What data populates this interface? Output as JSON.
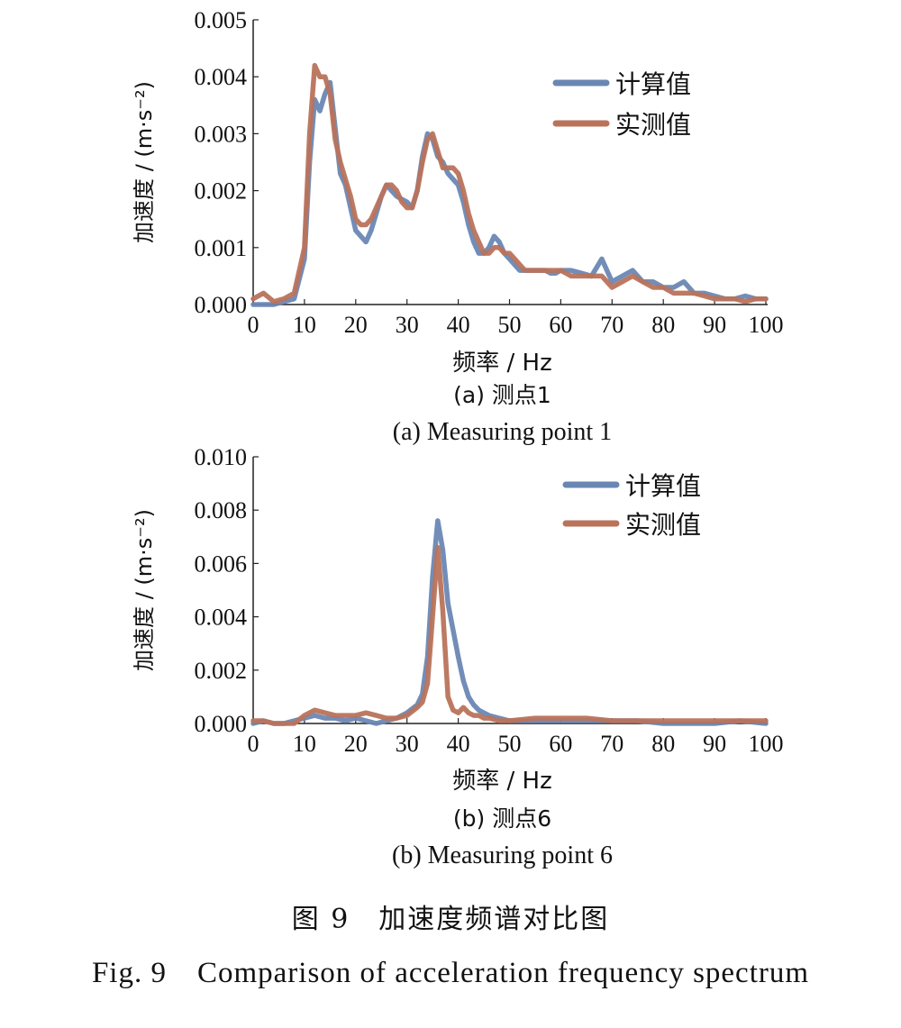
{
  "figure": {
    "title_cn": "图 9　加速度频谱对比图",
    "title_en": "Fig. 9　Comparison of acceleration frequency spectrum"
  },
  "chart_data": [
    {
      "type": "line",
      "caption_cn": "(a) 测点1",
      "caption_en": "(a) Measuring point 1",
      "xlabel": "频率 / Hz",
      "ylabel": "加速度 / (m·s⁻²)",
      "xlim": [
        0,
        100
      ],
      "ylim": [
        0,
        0.005
      ],
      "xticks": [
        "0",
        "10",
        "20",
        "30",
        "40",
        "50",
        "60",
        "70",
        "80",
        "90",
        "100"
      ],
      "yticks": [
        "0.000",
        "0.001",
        "0.002",
        "0.003",
        "0.004",
        "0.005"
      ],
      "legend_position": "top-right",
      "series": [
        {
          "name": "计算值",
          "color": "#6a87b4",
          "x": [
            0,
            2,
            4,
            6,
            8,
            10,
            11,
            12,
            13,
            14,
            15,
            16,
            17,
            18,
            19,
            20,
            21,
            22,
            23,
            24,
            25,
            26,
            27,
            28,
            29,
            30,
            31,
            32,
            33,
            34,
            35,
            36,
            37,
            38,
            39,
            40,
            41,
            42,
            43,
            44,
            45,
            46,
            47,
            48,
            49,
            50,
            51,
            52,
            53,
            54,
            55,
            56,
            57,
            58,
            59,
            60,
            62,
            64,
            66,
            68,
            70,
            72,
            74,
            76,
            78,
            80,
            82,
            84,
            86,
            88,
            90,
            92,
            94,
            96,
            98,
            100
          ],
          "y": [
            0.0,
            0.0,
            0.0,
            5e-05,
            0.0001,
            0.0008,
            0.0025,
            0.0036,
            0.0034,
            0.0037,
            0.0039,
            0.0031,
            0.0023,
            0.0021,
            0.0017,
            0.0013,
            0.0012,
            0.0011,
            0.0013,
            0.0016,
            0.0019,
            0.0021,
            0.002,
            0.0019,
            0.00185,
            0.0018,
            0.0017,
            0.002,
            0.0026,
            0.003,
            0.0029,
            0.0026,
            0.0025,
            0.0023,
            0.0022,
            0.0021,
            0.0018,
            0.0014,
            0.0011,
            0.0009,
            0.0009,
            0.001,
            0.0012,
            0.0011,
            0.0009,
            0.0008,
            0.0007,
            0.0006,
            0.0006,
            0.0006,
            0.0006,
            0.0006,
            0.0006,
            0.00055,
            0.00055,
            0.0006,
            0.0006,
            0.00055,
            0.0005,
            0.0008,
            0.0004,
            0.0005,
            0.0006,
            0.0004,
            0.0004,
            0.0003,
            0.0003,
            0.0004,
            0.0002,
            0.0002,
            0.00015,
            0.0001,
            0.0001,
            0.00015,
            0.0001,
            0.0001
          ]
        },
        {
          "name": "实测值",
          "color": "#b9735b",
          "x": [
            0,
            2,
            4,
            6,
            8,
            10,
            11,
            12,
            13,
            14,
            15,
            16,
            17,
            18,
            19,
            20,
            21,
            22,
            23,
            24,
            25,
            26,
            27,
            28,
            29,
            30,
            31,
            32,
            33,
            34,
            35,
            36,
            37,
            38,
            39,
            40,
            41,
            42,
            43,
            44,
            45,
            46,
            47,
            48,
            49,
            50,
            51,
            52,
            53,
            54,
            55,
            56,
            57,
            58,
            59,
            60,
            62,
            64,
            66,
            68,
            70,
            72,
            74,
            76,
            78,
            80,
            82,
            84,
            86,
            88,
            90,
            92,
            94,
            96,
            98,
            100
          ],
          "y": [
            0.0001,
            0.0002,
            5e-05,
            0.0001,
            0.0002,
            0.001,
            0.003,
            0.0042,
            0.004,
            0.004,
            0.0037,
            0.0029,
            0.0025,
            0.0022,
            0.0019,
            0.0015,
            0.0014,
            0.0014,
            0.0015,
            0.0017,
            0.0019,
            0.0021,
            0.0021,
            0.002,
            0.0018,
            0.0017,
            0.0017,
            0.002,
            0.0025,
            0.0029,
            0.003,
            0.0027,
            0.0024,
            0.0024,
            0.0024,
            0.0023,
            0.002,
            0.0016,
            0.0013,
            0.0011,
            0.0009,
            0.0009,
            0.001,
            0.001,
            0.0009,
            0.0009,
            0.0008,
            0.0007,
            0.0006,
            0.0006,
            0.0006,
            0.0006,
            0.0006,
            0.0006,
            0.0006,
            0.0006,
            0.0005,
            0.0005,
            0.0005,
            0.0005,
            0.0003,
            0.0004,
            0.0005,
            0.0004,
            0.0003,
            0.0003,
            0.0002,
            0.0002,
            0.0002,
            0.00015,
            0.0001,
            0.0001,
            0.0001,
            5e-05,
            0.0001,
            0.0001
          ]
        }
      ]
    },
    {
      "type": "line",
      "caption_cn": "(b) 测点6",
      "caption_en": "(b) Measuring point 6",
      "xlabel": "频率 / Hz",
      "ylabel": "加速度 / (m·s⁻²)",
      "xlim": [
        0,
        100
      ],
      "ylim": [
        0,
        0.01
      ],
      "xticks": [
        "0",
        "10",
        "20",
        "30",
        "40",
        "50",
        "60",
        "70",
        "80",
        "90",
        "100"
      ],
      "yticks": [
        "0.000",
        "0.002",
        "0.004",
        "0.006",
        "0.008",
        "0.010"
      ],
      "legend_position": "top-right",
      "series": [
        {
          "name": "计算值",
          "color": "#6a87b4",
          "x": [
            0,
            2,
            4,
            6,
            8,
            10,
            12,
            14,
            16,
            18,
            20,
            22,
            24,
            26,
            28,
            30,
            32,
            33,
            34,
            35,
            36,
            37,
            38,
            39,
            40,
            41,
            42,
            43,
            44,
            45,
            46,
            48,
            50,
            55,
            60,
            65,
            70,
            75,
            80,
            85,
            90,
            95,
            100
          ],
          "y": [
            0.0,
            0.0001,
            0.0,
            0.0,
            0.0001,
            0.0002,
            0.0003,
            0.0002,
            0.0002,
            0.0001,
            0.0002,
            0.0001,
            0.0,
            0.0001,
            0.0002,
            0.0004,
            0.0007,
            0.0011,
            0.0025,
            0.0055,
            0.0076,
            0.0065,
            0.0045,
            0.0035,
            0.0025,
            0.0016,
            0.001,
            0.0007,
            0.0005,
            0.0004,
            0.0003,
            0.0002,
            0.0001,
            0.0001,
            0.0001,
            0.0001,
            0.0001,
            0.0001,
            0.0,
            0.0,
            0.0,
            0.0001,
            0.0
          ]
        },
        {
          "name": "实测值",
          "color": "#b9735b",
          "x": [
            0,
            2,
            4,
            6,
            8,
            10,
            12,
            14,
            16,
            18,
            20,
            22,
            24,
            26,
            28,
            30,
            32,
            33,
            34,
            35,
            36,
            37,
            38,
            39,
            40,
            41,
            42,
            43,
            44,
            45,
            46,
            48,
            50,
            55,
            60,
            65,
            70,
            75,
            80,
            85,
            90,
            95,
            100
          ],
          "y": [
            0.0001,
            0.0001,
            0.0,
            0.0,
            0.0,
            0.0003,
            0.0005,
            0.0004,
            0.0003,
            0.0003,
            0.0003,
            0.0004,
            0.0003,
            0.0002,
            0.0002,
            0.0003,
            0.0006,
            0.0008,
            0.0015,
            0.004,
            0.0066,
            0.0042,
            0.001,
            0.0005,
            0.0004,
            0.0006,
            0.0004,
            0.0003,
            0.0003,
            0.0002,
            0.0002,
            0.0001,
            0.0001,
            0.0002,
            0.0002,
            0.0002,
            0.0001,
            0.0001,
            0.0001,
            0.0001,
            0.0001,
            0.0001,
            0.0001
          ]
        }
      ]
    }
  ]
}
